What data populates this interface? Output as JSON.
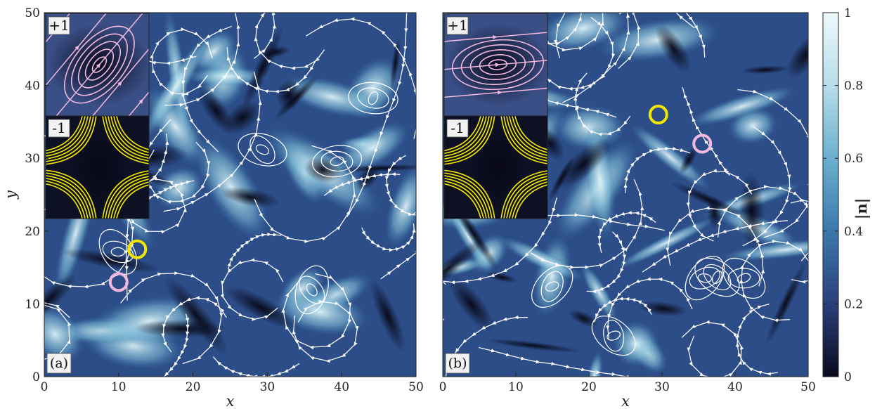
{
  "chart_data": [
    {
      "type": "heatmap",
      "panel_label": "(a)",
      "xlabel": "x",
      "ylabel": "y",
      "xlim": [
        0,
        50
      ],
      "ylim": [
        0,
        50
      ],
      "xticks": [
        0,
        10,
        20,
        30,
        40,
        50
      ],
      "yticks": [
        0,
        10,
        20,
        30,
        40,
        50
      ],
      "overlay": "streamlines",
      "defects": [
        {
          "charge": "+1",
          "x": 10,
          "y": 13,
          "color": "#f2b8e0"
        },
        {
          "charge": "-1",
          "x": 12.5,
          "y": 17.5,
          "color": "#f2e600"
        }
      ],
      "insets": [
        {
          "label": "+1",
          "color": "#f2b8e0"
        },
        {
          "label": "-1",
          "color": "#f2e600"
        }
      ]
    },
    {
      "type": "heatmap",
      "panel_label": "(b)",
      "xlabel": "x",
      "ylabel": "",
      "xlim": [
        0,
        50
      ],
      "ylim": [
        0,
        50
      ],
      "xticks": [
        0,
        10,
        20,
        30,
        40,
        50
      ],
      "overlay": "streamlines",
      "defects": [
        {
          "charge": "+1",
          "x": 35.5,
          "y": 32,
          "color": "#f2b8e0"
        },
        {
          "charge": "-1",
          "x": 29.5,
          "y": 36,
          "color": "#f2e600"
        }
      ],
      "insets": [
        {
          "label": "+1",
          "color": "#f2b8e0"
        },
        {
          "label": "-1",
          "color": "#f2e600"
        }
      ]
    }
  ],
  "colorbar": {
    "label": "|n|",
    "range": [
      0,
      1
    ],
    "ticks": [
      0,
      0.2,
      0.4,
      0.6,
      0.8,
      1
    ],
    "tick_labels": [
      "0",
      "0.2",
      "0.4",
      "0.6",
      "0.8",
      "1"
    ],
    "colors": [
      "#0b0b1e",
      "#2a3f7a",
      "#3b78ad",
      "#6bb0cf",
      "#b7dde9",
      "#eef9fb"
    ]
  }
}
